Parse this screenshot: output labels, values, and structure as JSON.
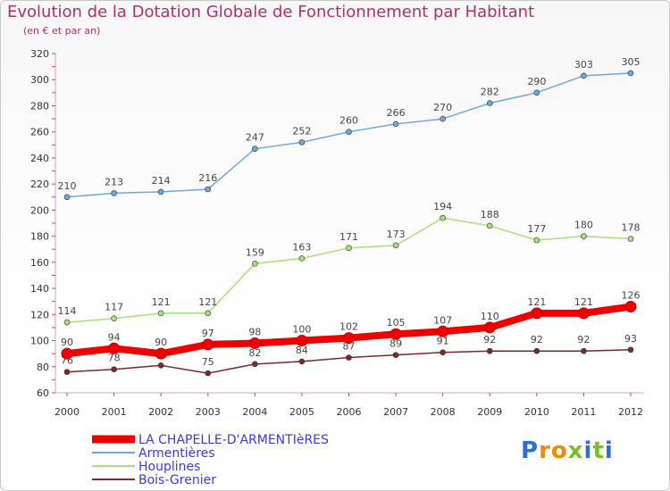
{
  "chart_data": {
    "type": "line",
    "title": "Evolution de la Dotation Globale de Fonctionnement par Habitant",
    "subtitle": "(en € et par an)",
    "x": [
      "2000",
      "2001",
      "2002",
      "2003",
      "2004",
      "2005",
      "2006",
      "2007",
      "2008",
      "2009",
      "2010",
      "2011",
      "2012"
    ],
    "ylim": [
      60,
      320
    ],
    "yticks": [
      60,
      80,
      100,
      120,
      140,
      160,
      180,
      200,
      220,
      240,
      260,
      280,
      300,
      320
    ],
    "grid": false,
    "legend_position": "bottom-left",
    "series": [
      {
        "name": "LA CHAPELLE-D'ARMENTIèRES",
        "color": "#ee0000",
        "values": [
          90,
          94,
          90,
          97,
          98,
          100,
          102,
          105,
          107,
          110,
          121,
          121,
          126
        ]
      },
      {
        "name": "Armentières",
        "color": "#6fa8dc",
        "values": [
          210,
          213,
          214,
          216,
          247,
          252,
          260,
          266,
          270,
          282,
          290,
          303,
          305
        ]
      },
      {
        "name": "Houplines",
        "color": "#a6e07a",
        "values": [
          114,
          117,
          121,
          121,
          159,
          163,
          171,
          173,
          194,
          188,
          177,
          180,
          178
        ]
      },
      {
        "name": "Bois-Grenier",
        "color": "#7a2a2a",
        "values": [
          76,
          78,
          81,
          75,
          82,
          84,
          87,
          89,
          91,
          92,
          92,
          92,
          93
        ]
      }
    ]
  },
  "logo": {
    "text": "Proxiti",
    "colors": [
      "#2b6fd6",
      "#f08a00",
      "#f08a00",
      "#7abf2a",
      "#2b6fd6",
      "#7abf2a",
      "#2b6fd6"
    ]
  }
}
